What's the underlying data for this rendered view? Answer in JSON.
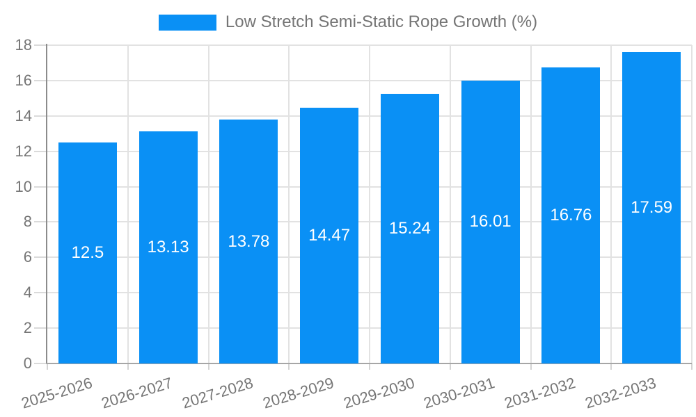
{
  "legend": {
    "label": "Low Stretch Semi-Static Rope Growth (%)"
  },
  "chart_data": {
    "type": "bar",
    "title": "Low Stretch Semi-Static Rope Growth (%)",
    "categories": [
      "2025-2026",
      "2026-2027",
      "2027-2028",
      "2028-2029",
      "2029-2030",
      "2030-2031",
      "2031-2032",
      "2032-2033"
    ],
    "values": [
      12.5,
      13.13,
      13.78,
      14.47,
      15.24,
      16.01,
      16.76,
      17.59
    ],
    "xlabel": "",
    "ylabel": "",
    "ylim": [
      0,
      18
    ],
    "yticks": [
      0,
      2,
      4,
      6,
      8,
      10,
      12,
      14,
      16,
      18
    ],
    "grid": true,
    "legend_position": "top-center",
    "value_labels": "inside-center",
    "colors": {
      "bar": "#0a90f5",
      "value_label": "#ffffff",
      "axis_text": "#757575",
      "gridline": "#e2e2e2",
      "y_axis_line": "#8c8c8c",
      "x_axis_line": "#a6a6a6"
    }
  }
}
